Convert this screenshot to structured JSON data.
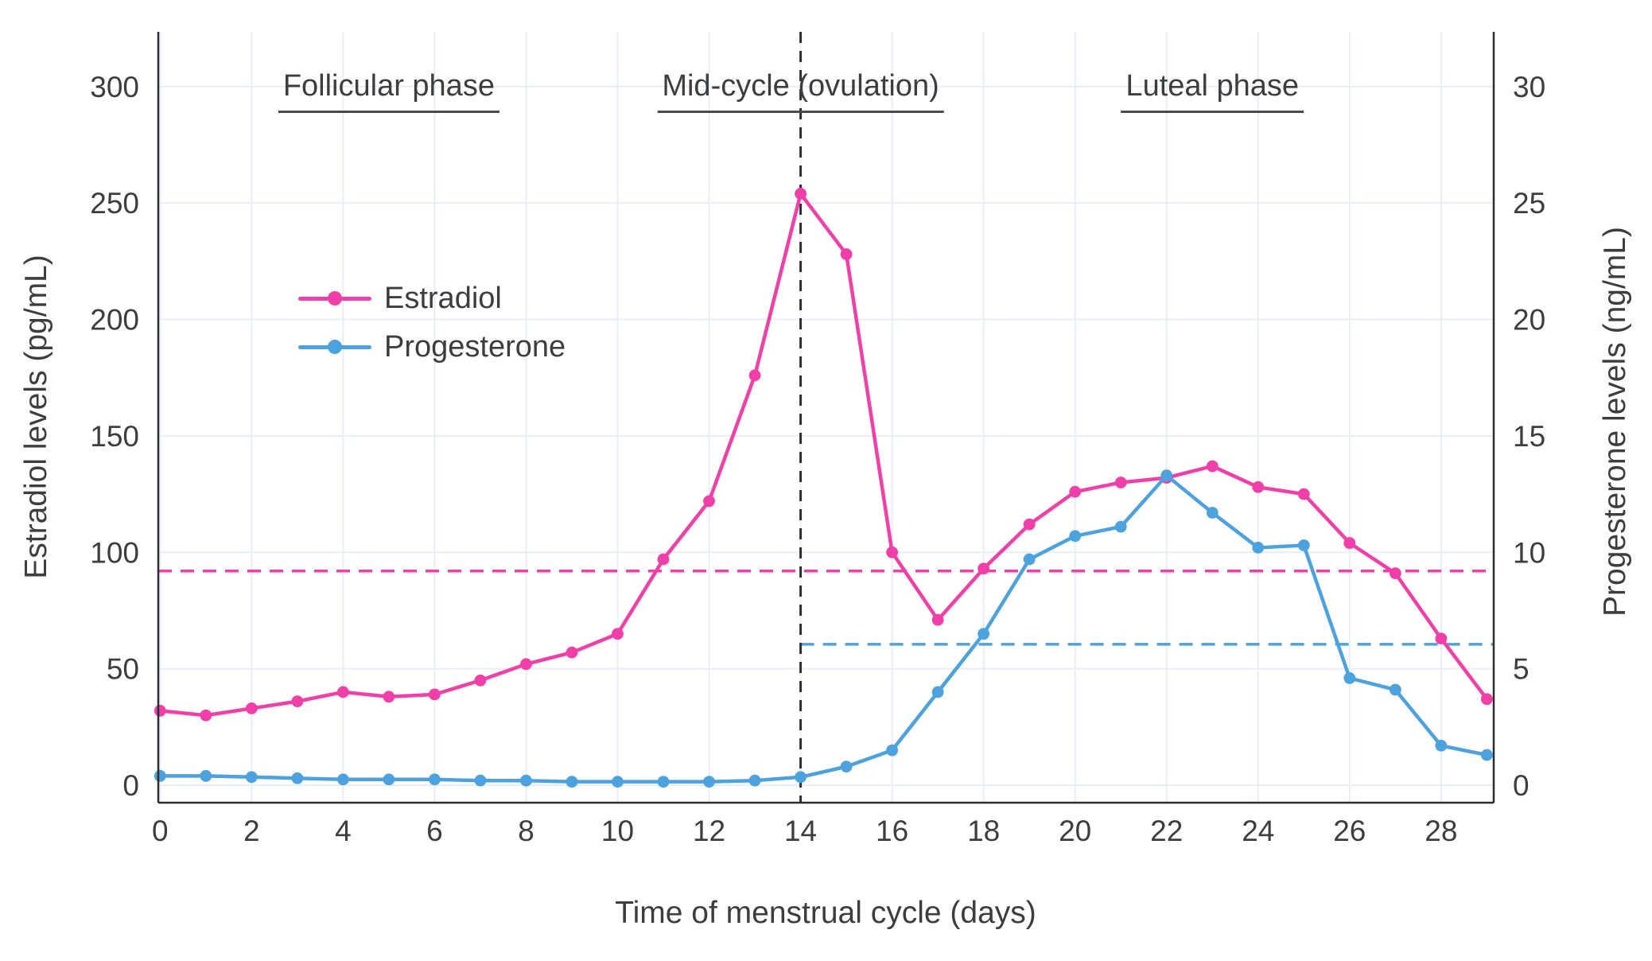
{
  "chart_data": {
    "type": "line",
    "title": "",
    "xlabel": "Time of menstrual cycle (days)",
    "ylabel_left": "Estradiol levels (pg/mL)",
    "ylabel_right": "Progesterone levels (ng/mL)",
    "x": [
      0,
      1,
      2,
      3,
      4,
      5,
      6,
      7,
      8,
      9,
      10,
      11,
      12,
      13,
      14,
      15,
      16,
      17,
      18,
      19,
      20,
      21,
      22,
      23,
      24,
      25,
      26,
      27,
      28,
      29
    ],
    "xticks": [
      0,
      2,
      4,
      6,
      8,
      10,
      12,
      14,
      16,
      18,
      20,
      22,
      24,
      26,
      28
    ],
    "yticks_left": [
      0,
      50,
      100,
      150,
      200,
      250,
      300
    ],
    "yticks_right": [
      0,
      5,
      10,
      15,
      20,
      25,
      30
    ],
    "xlim": [
      -0.04,
      29.15
    ],
    "ylim_left": [
      -7.5,
      323.5
    ],
    "ylim_right": [
      -0.75,
      32.35
    ],
    "grid": true,
    "legend_position": "upper-left-inside",
    "series": [
      {
        "name": "Estradiol",
        "axis": "left",
        "color": "#f13ea9",
        "marker": "circle",
        "values": [
          32,
          30,
          33,
          36,
          40,
          38,
          39,
          45,
          52,
          57,
          65,
          97,
          122,
          176,
          254,
          228,
          100,
          71,
          93,
          112,
          126,
          130,
          132,
          137,
          128,
          125,
          104,
          91,
          63,
          37
        ]
      },
      {
        "name": "Progesterone",
        "axis": "right",
        "color": "#4ba2df",
        "marker": "circle",
        "values": [
          0.4,
          0.4,
          0.35,
          0.3,
          0.25,
          0.25,
          0.25,
          0.2,
          0.2,
          0.15,
          0.15,
          0.15,
          0.15,
          0.2,
          0.35,
          0.8,
          1.5,
          4.0,
          6.5,
          9.7,
          10.7,
          11.1,
          13.3,
          11.7,
          10.2,
          10.3,
          4.6,
          4.1,
          1.7,
          1.3
        ]
      }
    ],
    "reference_lines": [
      {
        "name": "estradiol-mean-line",
        "orientation": "horizontal",
        "axis": "left",
        "value": 92,
        "color": "#f13ea9",
        "dash": true,
        "x_from": null
      },
      {
        "name": "progesterone-mean-line",
        "orientation": "horizontal",
        "axis": "right",
        "value": 6.05,
        "color": "#4ba2df",
        "dash": true,
        "x_from": 14
      },
      {
        "name": "ovulation-day-line",
        "orientation": "vertical",
        "x": 14,
        "color": "#2f2f2f",
        "dash": true
      }
    ],
    "annotations": [
      {
        "label": "Follicular phase",
        "x": 5,
        "underline": true
      },
      {
        "label": "Mid-cycle (ovulation)",
        "x": 14,
        "underline": true
      },
      {
        "label": "Luteal phase",
        "x": 23,
        "underline": true
      }
    ]
  },
  "styles": {
    "grid_color": "#e9edf5",
    "spine_color": "#2d2d2d",
    "text_color": "#3d3d3d"
  }
}
